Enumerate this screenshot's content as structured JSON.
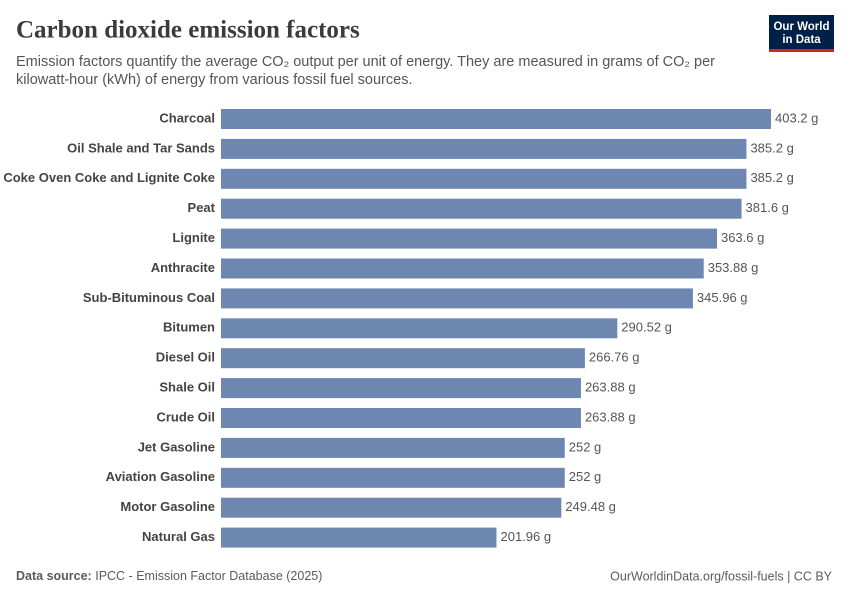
{
  "chart_data": {
    "type": "bar",
    "orientation": "horizontal",
    "title": "Carbon dioxide emission factors",
    "subtitle": [
      "Emission factors quantify the average CO₂ output per unit of energy. They are measured in grams of CO₂ per",
      "kilowatt-hour (kWh) of energy from various fossil fuel sources."
    ],
    "logo": [
      "Our World",
      "in Data"
    ],
    "source_label": "Data source:",
    "source": "IPCC - Emission Factor Database (2025)",
    "url": "OurWorldinData.org/fossil-fuels | CC BY",
    "color": "#6d87b1",
    "categories": [
      "Charcoal",
      "Oil Shale and Tar Sands",
      "Coke Oven Coke and Lignite Coke",
      "Peat",
      "Lignite",
      "Anthracite",
      "Sub-Bituminous Coal",
      "Bitumen",
      "Diesel Oil",
      "Shale Oil",
      "Crude Oil",
      "Jet Gasoline",
      "Aviation Gasoline",
      "Motor Gasoline",
      "Natural Gas"
    ],
    "values": [
      403.2,
      385.2,
      385.2,
      381.6,
      363.6,
      353.88,
      345.96,
      290.52,
      266.76,
      263.88,
      263.88,
      252,
      252,
      249.48,
      201.96
    ],
    "value_labels": [
      "403.2 g",
      "385.2 g",
      "385.2 g",
      "381.6 g",
      "363.6 g",
      "353.88 g",
      "345.96 g",
      "290.52 g",
      "266.76 g",
      "263.88 g",
      "263.88 g",
      "252 g",
      "252 g",
      "249.48 g",
      "201.96 g"
    ]
  }
}
